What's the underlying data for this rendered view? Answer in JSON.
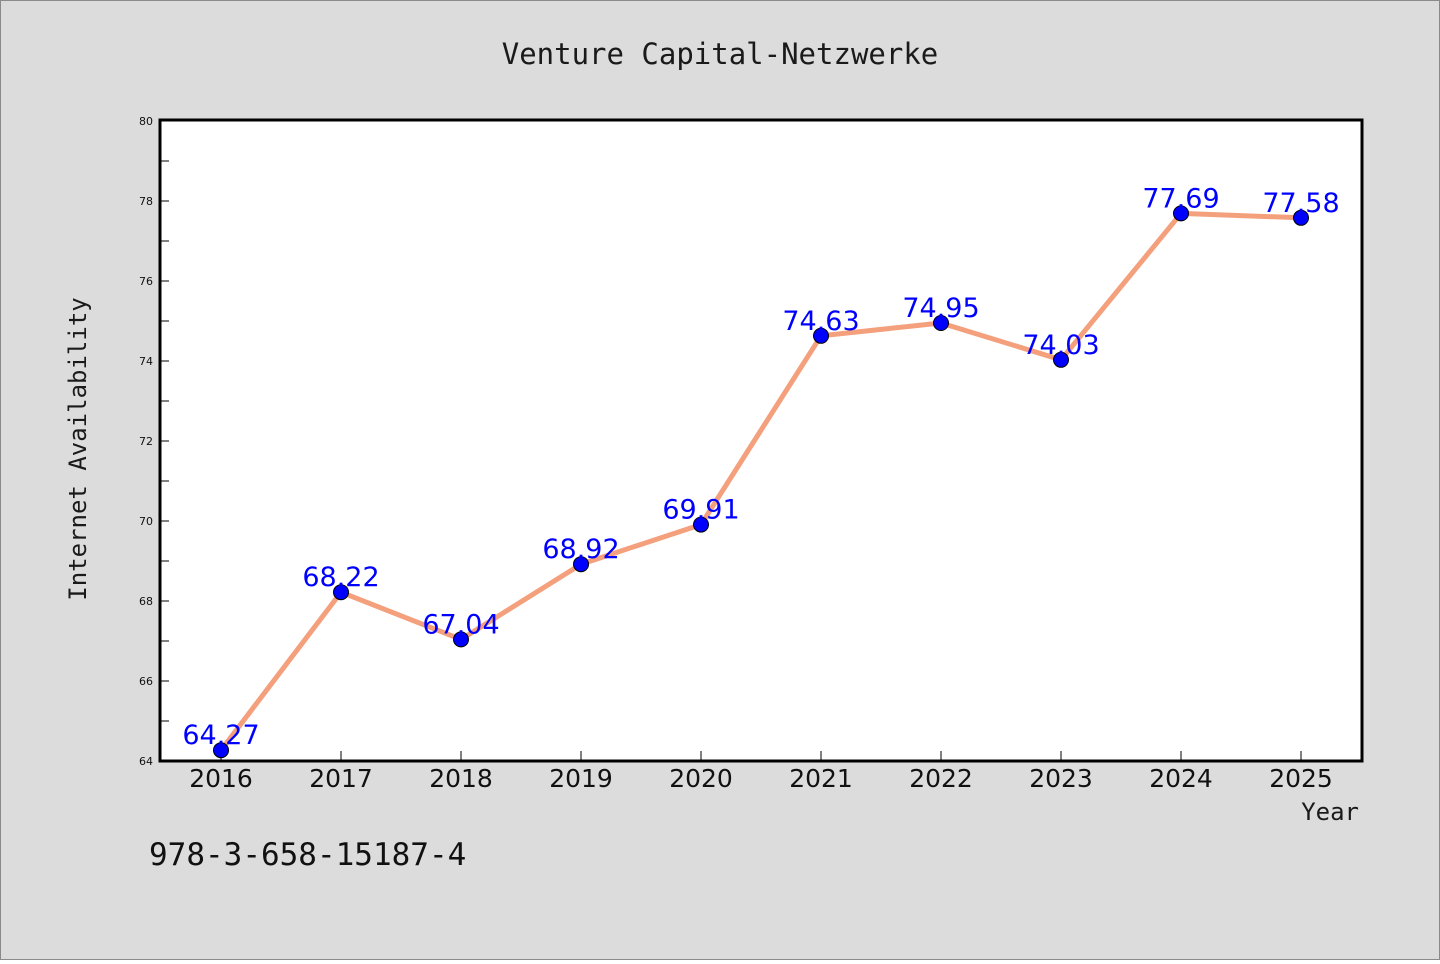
{
  "chart_data": {
    "type": "line",
    "title": "Venture Capital-Netzwerke",
    "xlabel": "Year",
    "ylabel": "Internet Availability",
    "categories": [
      "2016",
      "2017",
      "2018",
      "2019",
      "2020",
      "2021",
      "2022",
      "2023",
      "2024",
      "2025"
    ],
    "series": [
      {
        "values": [
          64.27,
          68.22,
          67.04,
          68.92,
          69.91,
          74.63,
          74.95,
          74.03,
          77.69,
          77.58
        ]
      }
    ],
    "data_labels": [
      "64.27",
      "68.22",
      "67.04",
      "68.92",
      "69.91",
      "74.63",
      "74.95",
      "74.03",
      "77.69",
      "77.58"
    ],
    "ylim": [
      64,
      80
    ],
    "yticks": [
      64,
      66,
      68,
      70,
      72,
      74,
      76,
      78,
      80
    ],
    "grid": false,
    "colors": {
      "line": "#f4a07c",
      "marker": "#0000ff",
      "label": "#0000ff"
    }
  },
  "footer": {
    "isbn": "978-3-658-15187-4"
  }
}
